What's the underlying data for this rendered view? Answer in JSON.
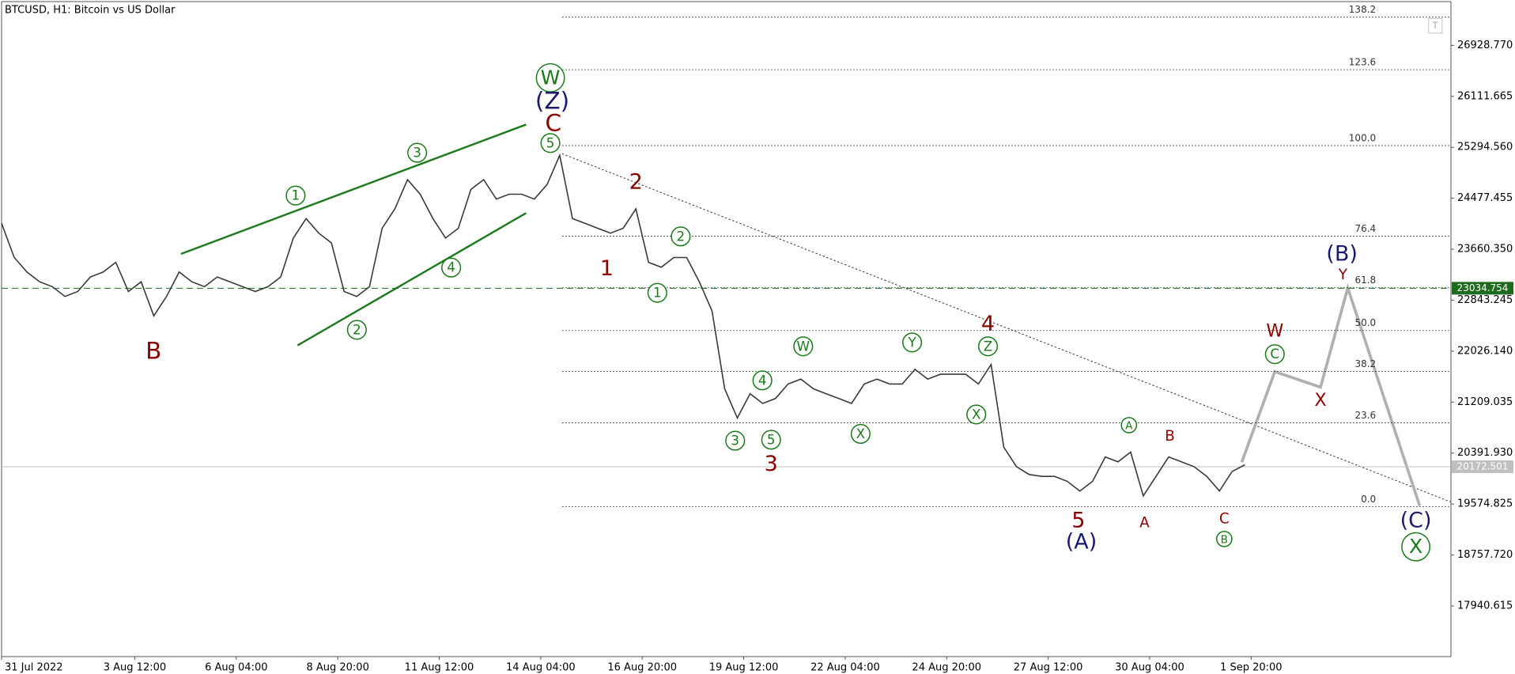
{
  "chart_data": {
    "type": "line",
    "title": "BTCUSD, H1:  Bitcoin vs US Dollar",
    "series": [
      {
        "name": "BTCUSD",
        "color": "#3a3a3a",
        "x": [
          0,
          8,
          16,
          24,
          32,
          40,
          48,
          56,
          64,
          72,
          80,
          88,
          96,
          104,
          112,
          120,
          128,
          136,
          144,
          152,
          160,
          168,
          176,
          184,
          192,
          200,
          208,
          216,
          224,
          232,
          240,
          248,
          256,
          264,
          272,
          280,
          288,
          296,
          304,
          312,
          320,
          328,
          336,
          344,
          352,
          360,
          368,
          376,
          384,
          392,
          400,
          408,
          416,
          424,
          432,
          440,
          448,
          456,
          464,
          472,
          480,
          488,
          496,
          504,
          512,
          520,
          528,
          536,
          544,
          552,
          560,
          568,
          576,
          584,
          592,
          600,
          608,
          616,
          624,
          632,
          640,
          648,
          656,
          664,
          672,
          680,
          688,
          696,
          704,
          712,
          720,
          728,
          736,
          744,
          752,
          760,
          768,
          776,
          784
        ],
        "values": [
          24074,
          23528,
          23294,
          23138,
          23060,
          22904,
          22982,
          23216,
          23294,
          23450,
          22982,
          23138,
          22592,
          22904,
          23294,
          23138,
          23060,
          23216,
          23138,
          23060,
          22982,
          23060,
          23216,
          23840,
          24152,
          23918,
          23762,
          22982,
          22904,
          23060,
          23996,
          24308,
          24776,
          24542,
          24152,
          23840,
          23996,
          24620,
          24776,
          24464,
          24542,
          24542,
          24464,
          24698,
          25166,
          24152,
          24074,
          23996,
          23918,
          23996,
          24308,
          23450,
          23372,
          23528,
          23528,
          23138,
          22670,
          21422,
          20954,
          21344,
          21188,
          21266,
          21500,
          21578,
          21422,
          21344,
          21266,
          21188,
          21500,
          21578,
          21500,
          21500,
          21734,
          21578,
          21656,
          21656,
          21656,
          21500,
          21812,
          20486,
          20174,
          20049,
          20018,
          20018,
          19940,
          19784,
          19940,
          20330,
          20252,
          20408,
          19706,
          20018,
          20330,
          20252,
          20174,
          20018,
          19784,
          20096,
          20205
        ]
      }
    ],
    "xlim": [
      0,
      914
    ],
    "ylim": [
      17129,
      27631
    ],
    "xticks": [
      {
        "value": 0,
        "label": "31 Jul 2022"
      },
      {
        "value": 84,
        "label": "3 Aug 12:00"
      },
      {
        "value": 148,
        "label": "6 Aug 04:00"
      },
      {
        "value": 212,
        "label": "8 Aug 20:00"
      },
      {
        "value": 276,
        "label": "11 Aug 12:00"
      },
      {
        "value": 340,
        "label": "14 Aug 04:00"
      },
      {
        "value": 404,
        "label": "16 Aug 20:00"
      },
      {
        "value": 468,
        "label": "19 Aug 12:00"
      },
      {
        "value": 532,
        "label": "22 Aug 04:00"
      },
      {
        "value": 596,
        "label": "24 Aug 20:00"
      },
      {
        "value": 660,
        "label": "27 Aug 12:00"
      },
      {
        "value": 724,
        "label": "30 Aug 04:00"
      },
      {
        "value": 788,
        "label": "1 Sep 20:00"
      }
    ],
    "yticks": [
      {
        "value": 26928.77,
        "label": "26928.770"
      },
      {
        "value": 26111.665,
        "label": "26111.665"
      },
      {
        "value": 25294.56,
        "label": "25294.560"
      },
      {
        "value": 24477.455,
        "label": "24477.455"
      },
      {
        "value": 23660.35,
        "label": "23660.350"
      },
      {
        "value": 22843.245,
        "label": "22843.245"
      },
      {
        "value": 22026.14,
        "label": "22026.140"
      },
      {
        "value": 21209.035,
        "label": "21209.035"
      },
      {
        "value": 20391.93,
        "label": "20391.930"
      },
      {
        "value": 19574.825,
        "label": "19574.825"
      },
      {
        "value": 18757.72,
        "label": "18757.720"
      },
      {
        "value": 17940.615,
        "label": "17940.615"
      }
    ],
    "fibonacci": [
      {
        "label": "138.2",
        "price": 27381
      },
      {
        "label": "123.6",
        "price": 26539
      },
      {
        "label": "100.0",
        "price": 25322
      },
      {
        "label": "76.4",
        "price": 23871
      },
      {
        "label": "61.8",
        "price": 23043
      },
      {
        "label": "50.0",
        "price": 22358
      },
      {
        "label": "38.2",
        "price": 21703
      },
      {
        "label": "23.6",
        "price": 20876
      },
      {
        "label": "0.0",
        "price": 19534
      }
    ],
    "price_lines": [
      {
        "value": 23034.754,
        "color": "#1e6b1e",
        "dashed": true
      },
      {
        "value": 20172.501,
        "color": "#c0c0c0",
        "dashed": false
      }
    ],
    "annotations": [
      {
        "text": "W",
        "color": "#1a7a1a",
        "circle": true
      },
      {
        "text": "5",
        "color": "#1a7a1a",
        "circle": true
      },
      {
        "text": "1",
        "color": "#1a7a1a",
        "circle": true
      },
      {
        "text": "3",
        "color": "#1a7a1a",
        "circle": true
      },
      {
        "text": "4",
        "color": "#1a7a1a",
        "circle": true
      },
      {
        "text": "2",
        "color": "#1a7a1a",
        "circle": true
      },
      {
        "text": "2",
        "color": "#1a7a1a",
        "circle": true
      },
      {
        "text": "1",
        "color": "#1a7a1a",
        "circle": true
      },
      {
        "text": "3",
        "color": "#1a7a1a",
        "circle": true
      },
      {
        "text": "5",
        "color": "#1a7a1a",
        "circle": true
      },
      {
        "text": "4",
        "color": "#1a7a1a",
        "circle": true
      },
      {
        "text": "W",
        "color": "#1a7a1a",
        "circle": true
      },
      {
        "text": "X",
        "color": "#1a7a1a",
        "circle": true
      },
      {
        "text": "Y",
        "color": "#1a7a1a",
        "circle": true
      },
      {
        "text": "Z",
        "color": "#1a7a1a",
        "circle": true
      },
      {
        "text": "X",
        "color": "#1a7a1a",
        "circle": true
      },
      {
        "text": "A",
        "color": "#1a7a1a",
        "circle": true
      },
      {
        "text": "B",
        "color": "#1a7a1a",
        "circle": true
      },
      {
        "text": "C",
        "color": "#1a7a1a",
        "circle": true
      },
      {
        "text": "X",
        "color": "#1a7a1a",
        "circle": true
      },
      {
        "text": "(Z)",
        "color": "#1a1a6e",
        "circle": false
      },
      {
        "text": "(A)",
        "color": "#1a1a6e",
        "circle": false
      },
      {
        "text": "(B)",
        "color": "#1a1a6e",
        "circle": false
      },
      {
        "text": "(C)",
        "color": "#1a1a6e",
        "circle": false
      },
      {
        "text": "C",
        "color": "#8b0000",
        "circle": false
      },
      {
        "text": "B",
        "color": "#8b0000",
        "circle": false
      },
      {
        "text": "2",
        "color": "#8b0000",
        "circle": false
      },
      {
        "text": "1",
        "color": "#8b0000",
        "circle": false
      },
      {
        "text": "3",
        "color": "#8b0000",
        "circle": false
      },
      {
        "text": "4",
        "color": "#8b0000",
        "circle": false
      },
      {
        "text": "5",
        "color": "#8b0000",
        "circle": false
      },
      {
        "text": "A",
        "color": "#8b0000",
        "circle": false
      },
      {
        "text": "B",
        "color": "#8b0000",
        "circle": false
      },
      {
        "text": "C",
        "color": "#8b0000",
        "circle": false
      },
      {
        "text": "W",
        "color": "#8b0000",
        "circle": false
      },
      {
        "text": "X",
        "color": "#8b0000",
        "circle": false
      },
      {
        "text": "Y",
        "color": "#8b0000",
        "circle": false
      }
    ]
  }
}
